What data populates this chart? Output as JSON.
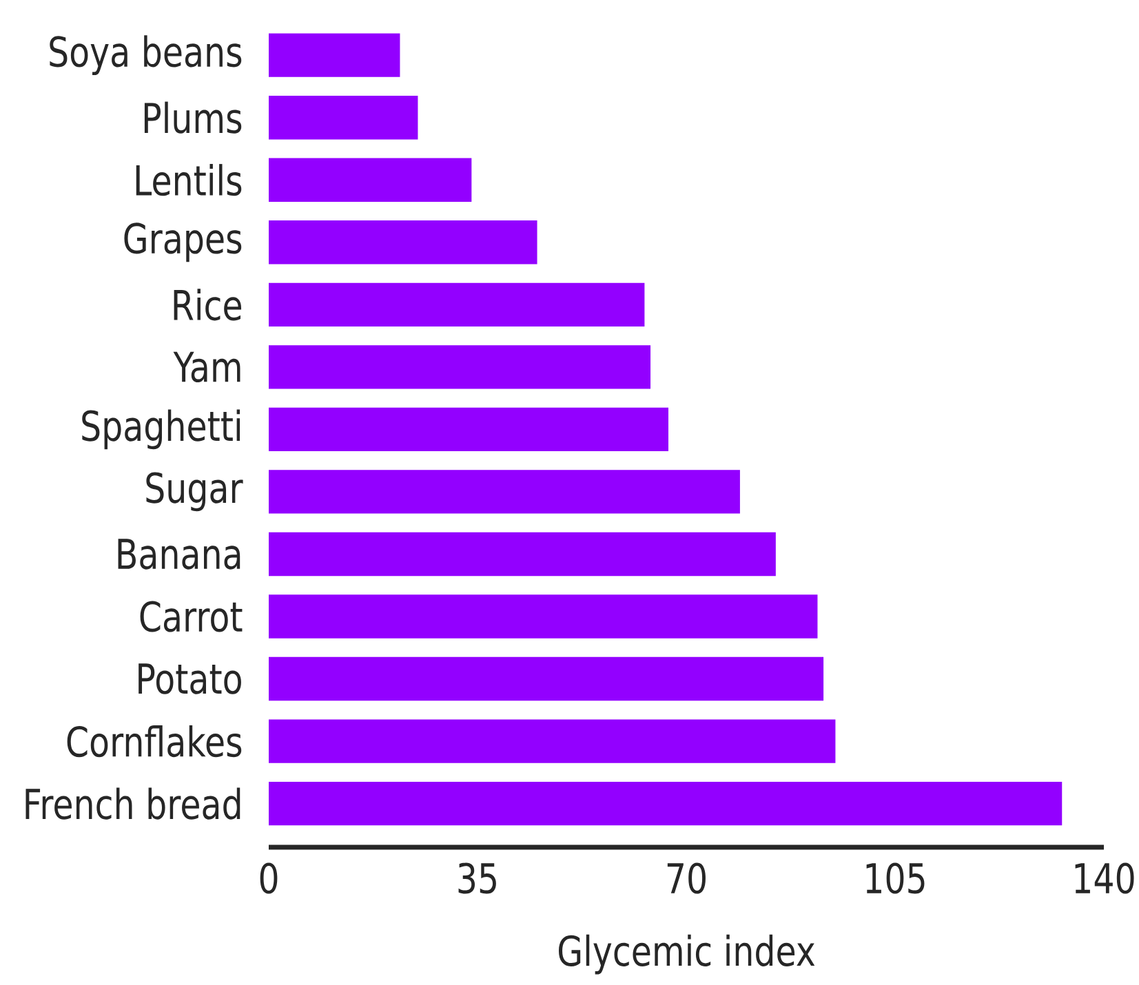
{
  "chart_data": {
    "type": "bar",
    "orientation": "horizontal",
    "xlabel": "Glycemic index",
    "categories": [
      "Soya beans",
      "Plums",
      "Lentils",
      "Grapes",
      "Rice",
      "Yam",
      "Spaghetti",
      "Sugar",
      "Banana",
      "Carrot",
      "Potato",
      "Cornflakes",
      "French bread"
    ],
    "values": [
      22,
      25,
      34,
      45,
      63,
      64,
      67,
      79,
      85,
      92,
      93,
      95,
      133
    ],
    "color": "#9300ff",
    "xlim": [
      0,
      140
    ],
    "xticks": [
      0,
      35,
      70,
      105,
      140
    ],
    "grid": false
  }
}
